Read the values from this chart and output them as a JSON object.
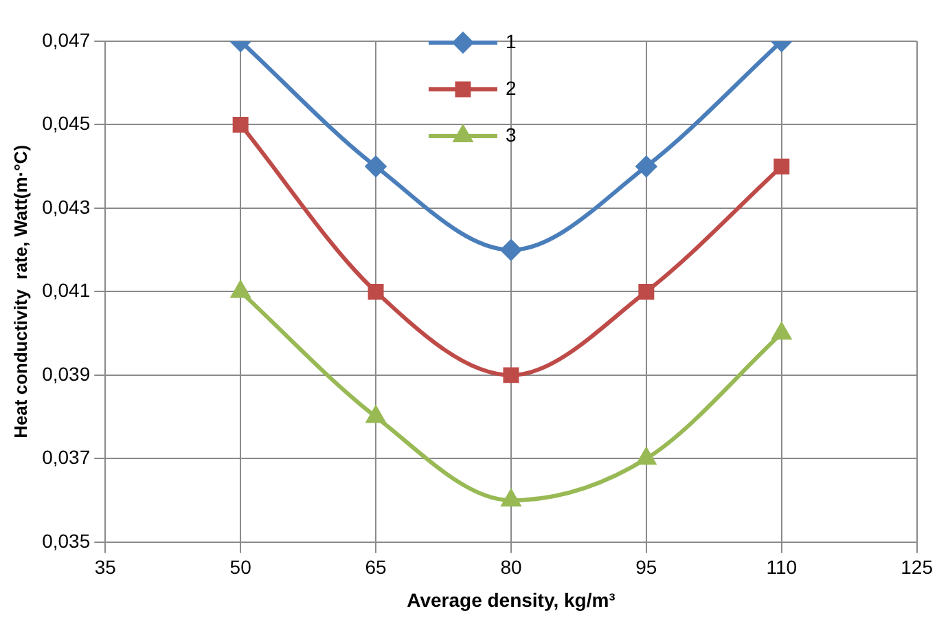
{
  "chart_data": {
    "type": "line",
    "xlabel": "Average density, kg/m³",
    "ylabel": "Heat conductivity  rate, Watt(m·°C)",
    "x": [
      50,
      65,
      80,
      95,
      110
    ],
    "series": [
      {
        "name": "1",
        "color": "#4a7ebb",
        "marker": "diamond",
        "values": [
          0.047,
          0.044,
          0.042,
          0.044,
          0.047
        ]
      },
      {
        "name": "2",
        "color": "#be4b48",
        "marker": "square",
        "values": [
          0.045,
          0.041,
          0.039,
          0.041,
          0.044
        ]
      },
      {
        "name": "3",
        "color": "#98b954",
        "marker": "triangle",
        "values": [
          0.041,
          0.038,
          0.036,
          0.037,
          0.04
        ]
      }
    ],
    "xlim": [
      35,
      125
    ],
    "xticks": [
      35,
      50,
      65,
      80,
      95,
      110,
      125
    ],
    "ylim": [
      0.035,
      0.047
    ],
    "yticks": [
      {
        "value": 0.035,
        "label": "0,035"
      },
      {
        "value": 0.037,
        "label": "0,037"
      },
      {
        "value": 0.039,
        "label": "0,039"
      },
      {
        "value": 0.041,
        "label": "0,041"
      },
      {
        "value": 0.043,
        "label": "0,043"
      },
      {
        "value": 0.045,
        "label": "0,045"
      },
      {
        "value": 0.047,
        "label": "0,047"
      }
    ],
    "grid": true,
    "legend": "top",
    "line_style": "solid"
  }
}
